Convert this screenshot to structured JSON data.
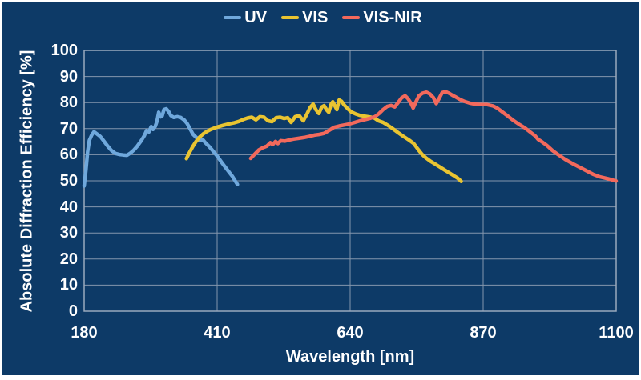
{
  "frame": {
    "background": "#0D3A67",
    "border_color": "#FFFFFF"
  },
  "plot": {
    "grid_color": "#8496AD",
    "border_color": "#9AA9BD",
    "text_color": "#FFFFFF"
  },
  "chart_data": {
    "type": "line",
    "title": "",
    "xlabel": "Wavelength [nm]",
    "ylabel": "Absolute Diffraction Efficiency [%]",
    "xlim": [
      180,
      1100
    ],
    "ylim": [
      0,
      100
    ],
    "xticks": [
      180,
      410,
      640,
      870,
      1100
    ],
    "yticks": [
      0,
      10,
      20,
      30,
      40,
      50,
      60,
      70,
      80,
      90,
      100
    ],
    "grid": true,
    "legend_position": "top-center",
    "series": [
      {
        "name": "UV",
        "color": "#6FA8DC",
        "points": [
          [
            180,
            48
          ],
          [
            183,
            54
          ],
          [
            186,
            61
          ],
          [
            189,
            65.5
          ],
          [
            193,
            67.5
          ],
          [
            197,
            68.8
          ],
          [
            202,
            68
          ],
          [
            208,
            67
          ],
          [
            214,
            65.3
          ],
          [
            220,
            63.5
          ],
          [
            227,
            61.7
          ],
          [
            234,
            60.5
          ],
          [
            241,
            60.1
          ],
          [
            248,
            59.9
          ],
          [
            254,
            59.8
          ],
          [
            260,
            60.6
          ],
          [
            266,
            61.8
          ],
          [
            272,
            63.3
          ],
          [
            279,
            65.5
          ],
          [
            284,
            67.3
          ],
          [
            288,
            69.3
          ],
          [
            292,
            68.7
          ],
          [
            296,
            70.8
          ],
          [
            299,
            69.7
          ],
          [
            303,
            70.9
          ],
          [
            306,
            72.8
          ],
          [
            309,
            76.3
          ],
          [
            312,
            74.5
          ],
          [
            315,
            74.9
          ],
          [
            318,
            77.3
          ],
          [
            322,
            77.6
          ],
          [
            326,
            76.6
          ],
          [
            330,
            75
          ],
          [
            335,
            74.3
          ],
          [
            341,
            74.6
          ],
          [
            347,
            74.3
          ],
          [
            353,
            73.3
          ],
          [
            358,
            72
          ],
          [
            363,
            70
          ],
          [
            368,
            67.9
          ],
          [
            374,
            66.6
          ],
          [
            380,
            65.5
          ],
          [
            385,
            65.8
          ],
          [
            390,
            64.5
          ],
          [
            396,
            63.2
          ],
          [
            403,
            61.4
          ],
          [
            410,
            59.5
          ],
          [
            418,
            57
          ],
          [
            427,
            54.4
          ],
          [
            436,
            51.8
          ],
          [
            445,
            48.6
          ]
        ]
      },
      {
        "name": "VIS",
        "color": "#E9C431",
        "points": [
          [
            357,
            58.5
          ],
          [
            362,
            60.8
          ],
          [
            368,
            63.2
          ],
          [
            374,
            65.2
          ],
          [
            380,
            66.8
          ],
          [
            386,
            68
          ],
          [
            392,
            68.9
          ],
          [
            399,
            69.7
          ],
          [
            406,
            70.3
          ],
          [
            413,
            70.8
          ],
          [
            421,
            71.3
          ],
          [
            430,
            71.8
          ],
          [
            439,
            72.2
          ],
          [
            448,
            72.8
          ],
          [
            456,
            73.6
          ],
          [
            463,
            74.1
          ],
          [
            470,
            74.4
          ],
          [
            477,
            73.4
          ],
          [
            484,
            74.6
          ],
          [
            491,
            74.4
          ],
          [
            498,
            73
          ],
          [
            505,
            72.7
          ],
          [
            512,
            74.2
          ],
          [
            519,
            74.4
          ],
          [
            526,
            73.9
          ],
          [
            532,
            74.2
          ],
          [
            538,
            72.4
          ],
          [
            545,
            74.6
          ],
          [
            552,
            75
          ],
          [
            559,
            73
          ],
          [
            565,
            75.5
          ],
          [
            571,
            78.2
          ],
          [
            576,
            79.4
          ],
          [
            581,
            77.2
          ],
          [
            586,
            75.8
          ],
          [
            591,
            78.3
          ],
          [
            595,
            78.8
          ],
          [
            600,
            77
          ],
          [
            603,
            76.3
          ],
          [
            607,
            79.3
          ],
          [
            610,
            80.3
          ],
          [
            614,
            78.6
          ],
          [
            617,
            77.3
          ],
          [
            621,
            81
          ],
          [
            625,
            80.5
          ],
          [
            630,
            79
          ],
          [
            636,
            77.6
          ],
          [
            642,
            76.4
          ],
          [
            649,
            75.7
          ],
          [
            657,
            75.1
          ],
          [
            665,
            74.8
          ],
          [
            673,
            74.5
          ],
          [
            681,
            74.2
          ],
          [
            689,
            73
          ],
          [
            697,
            72.4
          ],
          [
            706,
            71.2
          ],
          [
            715,
            69.8
          ],
          [
            724,
            68.3
          ],
          [
            733,
            66.9
          ],
          [
            742,
            65.6
          ],
          [
            750,
            64.3
          ],
          [
            757,
            62.2
          ],
          [
            764,
            60.2
          ],
          [
            771,
            58.8
          ],
          [
            779,
            57.5
          ],
          [
            787,
            56.4
          ],
          [
            795,
            55.3
          ],
          [
            803,
            54.2
          ],
          [
            811,
            53.1
          ],
          [
            819,
            52
          ],
          [
            826,
            51
          ],
          [
            832,
            49.8
          ]
        ]
      },
      {
        "name": "VIS-NIR",
        "color": "#F2695C",
        "points": [
          [
            468,
            58.6
          ],
          [
            475,
            60.2
          ],
          [
            482,
            61.8
          ],
          [
            489,
            62.7
          ],
          [
            496,
            63.3
          ],
          [
            502,
            64.6
          ],
          [
            506,
            63.9
          ],
          [
            511,
            65.1
          ],
          [
            515,
            64.3
          ],
          [
            520,
            65.4
          ],
          [
            527,
            65.2
          ],
          [
            534,
            65.6
          ],
          [
            542,
            66
          ],
          [
            551,
            66.3
          ],
          [
            560,
            66.6
          ],
          [
            569,
            67
          ],
          [
            578,
            67.5
          ],
          [
            587,
            67.8
          ],
          [
            595,
            68.2
          ],
          [
            604,
            69.4
          ],
          [
            612,
            70.5
          ],
          [
            621,
            71
          ],
          [
            630,
            71.4
          ],
          [
            639,
            71.8
          ],
          [
            648,
            72.4
          ],
          [
            657,
            73
          ],
          [
            666,
            73.5
          ],
          [
            675,
            74
          ],
          [
            683,
            74.6
          ],
          [
            690,
            75.8
          ],
          [
            697,
            77.3
          ],
          [
            704,
            78.5
          ],
          [
            711,
            78.9
          ],
          [
            717,
            78.3
          ],
          [
            723,
            80
          ],
          [
            729,
            81.8
          ],
          [
            735,
            82.6
          ],
          [
            740,
            81.5
          ],
          [
            745,
            79.8
          ],
          [
            749,
            77.9
          ],
          [
            754,
            80.4
          ],
          [
            759,
            82.6
          ],
          [
            765,
            83.6
          ],
          [
            772,
            84
          ],
          [
            778,
            83.3
          ],
          [
            784,
            81.9
          ],
          [
            789,
            79.6
          ],
          [
            794,
            81.6
          ],
          [
            799,
            83.8
          ],
          [
            805,
            84.2
          ],
          [
            811,
            83.6
          ],
          [
            817,
            82.8
          ],
          [
            823,
            82.1
          ],
          [
            830,
            81.2
          ],
          [
            838,
            80.4
          ],
          [
            847,
            79.8
          ],
          [
            856,
            79.4
          ],
          [
            866,
            79.2
          ],
          [
            877,
            79.2
          ],
          [
            887,
            78.7
          ],
          [
            895,
            77.8
          ],
          [
            904,
            76.3
          ],
          [
            913,
            74.8
          ],
          [
            922,
            73.2
          ],
          [
            932,
            71.7
          ],
          [
            942,
            70.3
          ],
          [
            952,
            68.6
          ],
          [
            960,
            67.2
          ],
          [
            965,
            65.9
          ],
          [
            972,
            64.9
          ],
          [
            980,
            63.6
          ],
          [
            990,
            61.6
          ],
          [
            1000,
            60
          ],
          [
            1012,
            58.2
          ],
          [
            1024,
            56.7
          ],
          [
            1036,
            55.3
          ],
          [
            1048,
            53.9
          ],
          [
            1060,
            52.5
          ],
          [
            1072,
            51.5
          ],
          [
            1086,
            50.8
          ],
          [
            1100,
            49.9
          ]
        ]
      }
    ]
  }
}
